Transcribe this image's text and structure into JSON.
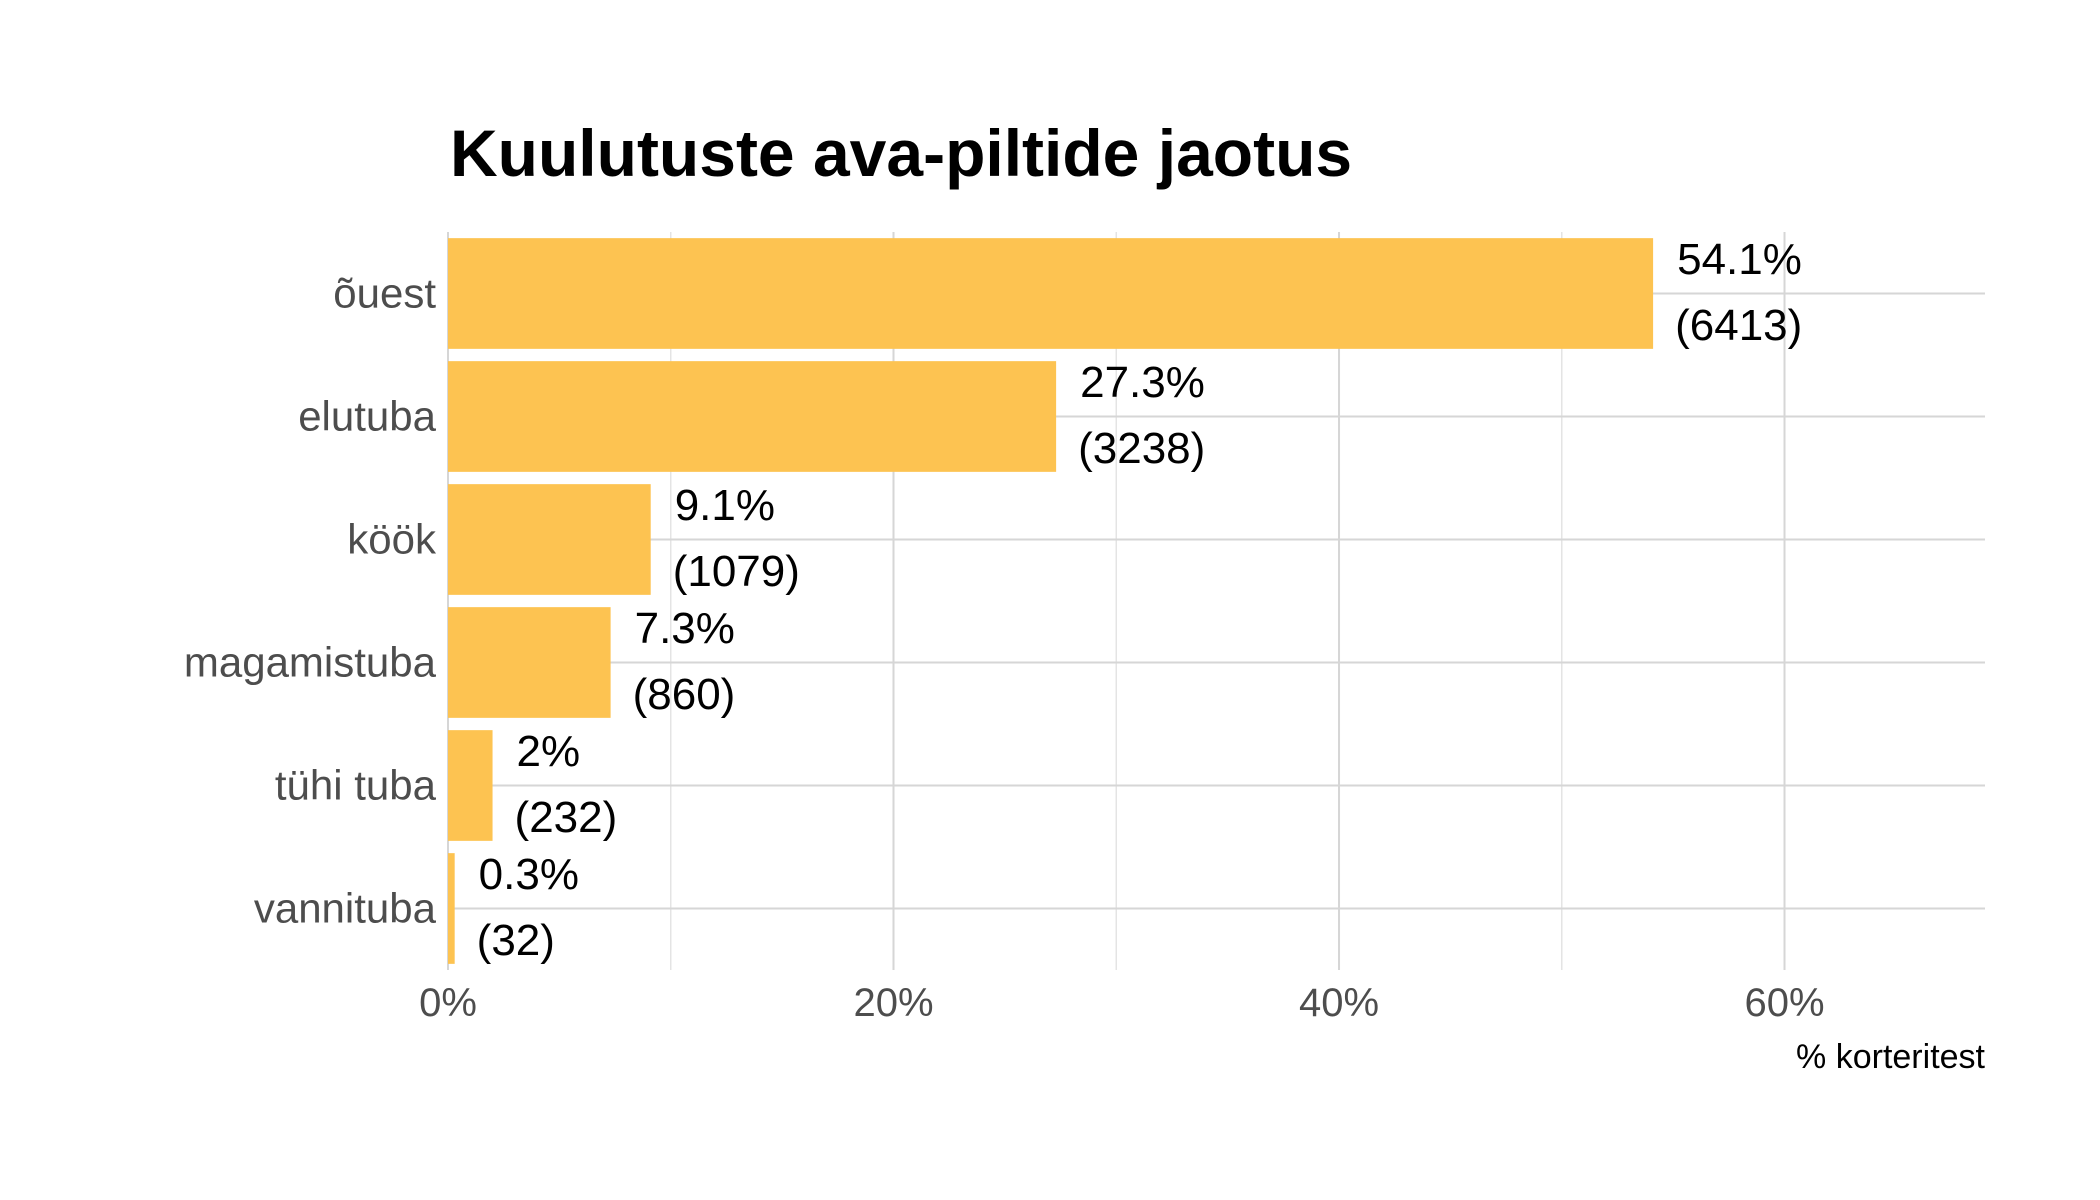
{
  "chart_data": {
    "type": "bar",
    "orientation": "horizontal",
    "title": "Kuulutuste ava-piltide jaotus",
    "xlabel": "% korteritest",
    "ylabel": "",
    "categories": [
      "õuest",
      "elutuba",
      "köök",
      "magamistuba",
      "tühi tuba",
      "vannituba"
    ],
    "values": [
      54.1,
      27.3,
      9.1,
      7.3,
      2,
      0.3
    ],
    "value_labels": [
      "54.1%",
      "27.3%",
      "9.1%",
      "7.3%",
      "2%",
      "0.3%"
    ],
    "counts": [
      "(6413)",
      "(3238)",
      "(1079)",
      "(860)",
      "(232)",
      "(32)"
    ],
    "xlim": [
      0,
      69
    ],
    "x_ticks": [
      0,
      20,
      40,
      60
    ],
    "x_tick_labels": [
      "0%",
      "20%",
      "40%",
      "60%"
    ],
    "x_minor_ticks": [
      10,
      30,
      50
    ],
    "grid": true,
    "legend": "none",
    "bar_color": "#FDC351"
  }
}
